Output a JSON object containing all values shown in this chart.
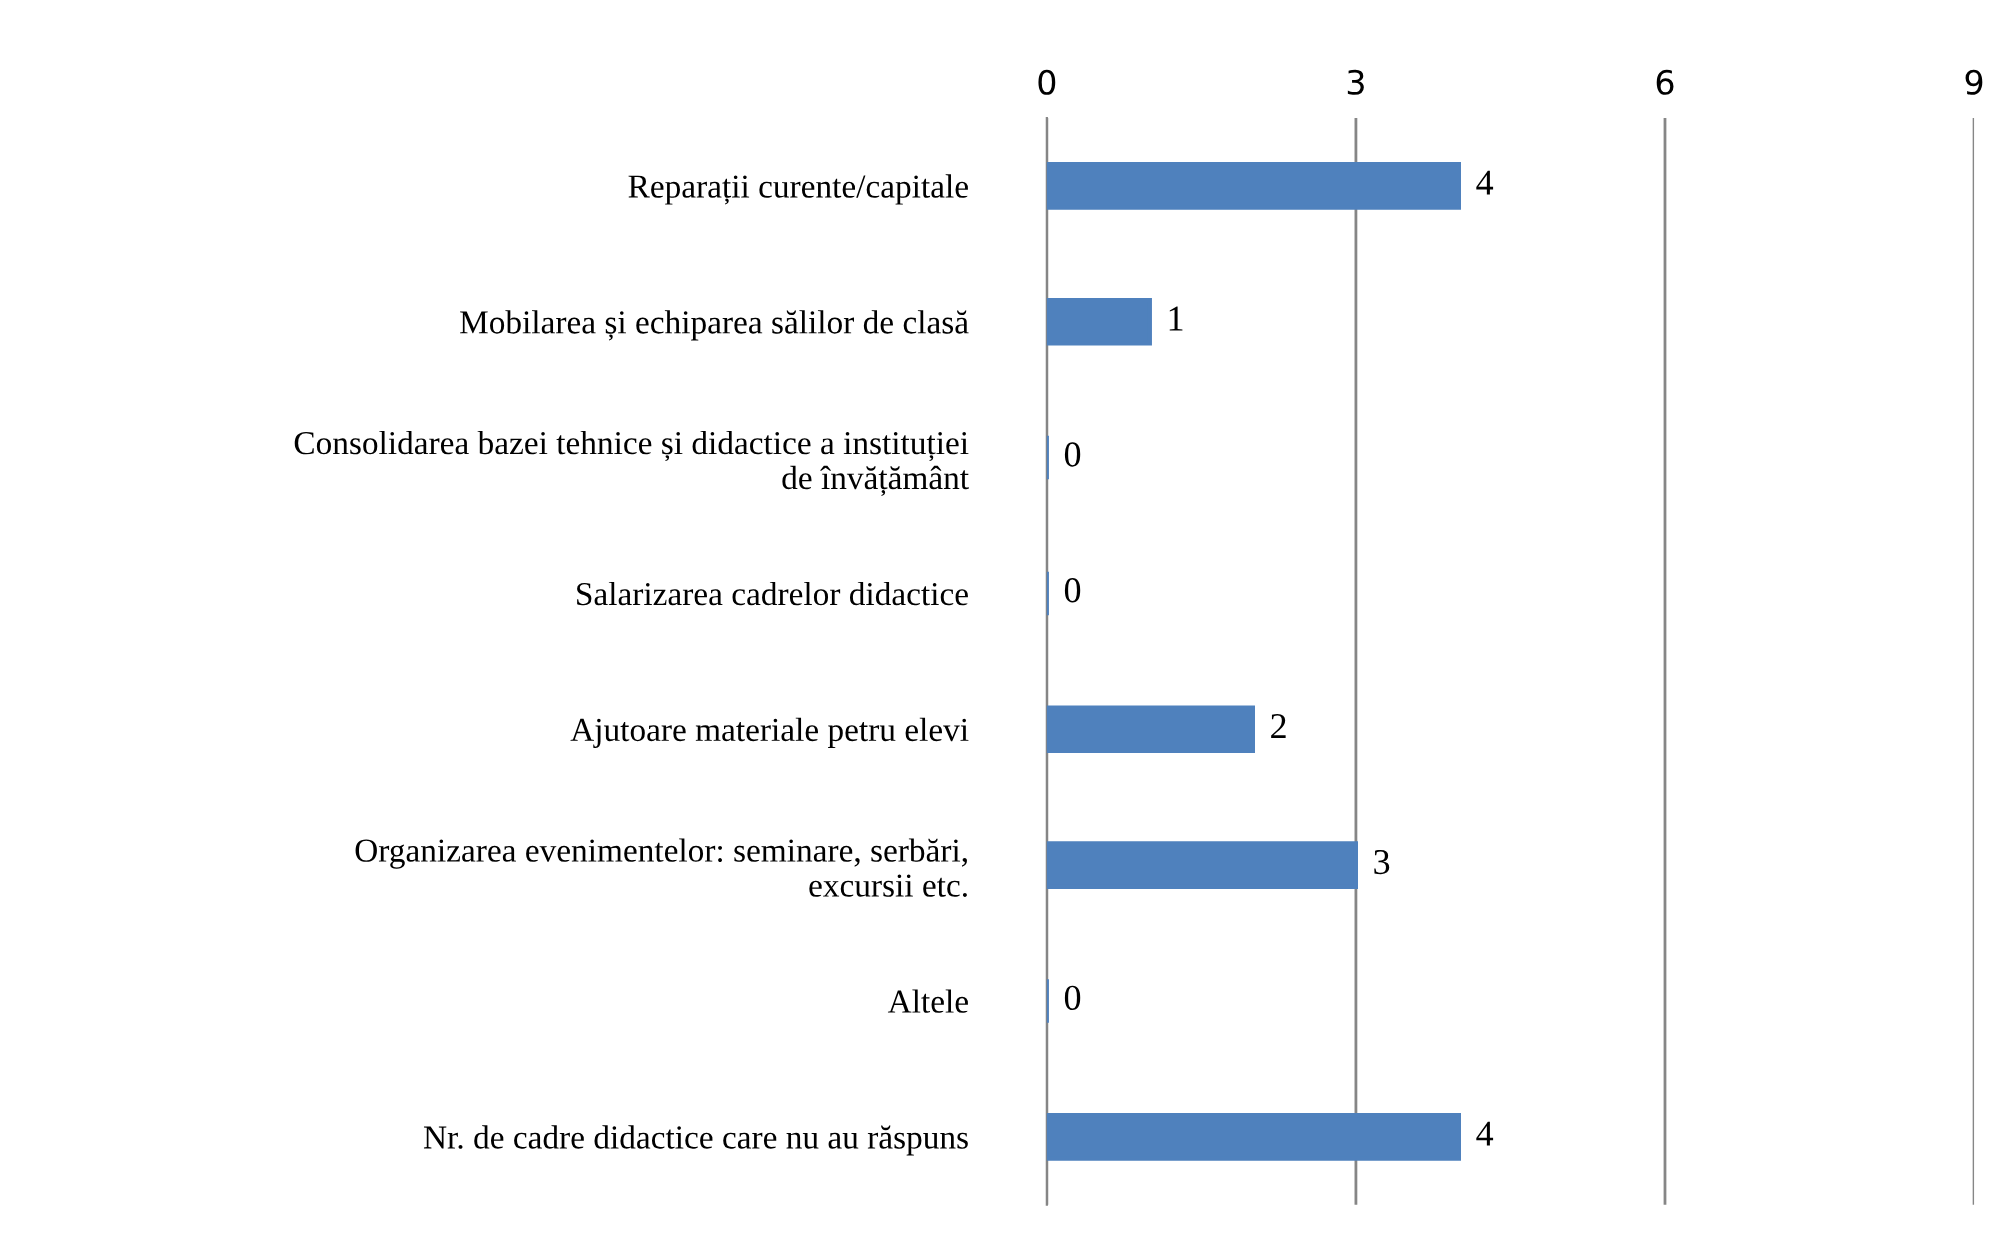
{
  "chart_data": {
    "type": "bar",
    "orientation": "horizontal",
    "categories": [
      "Reparații curente/capitale",
      "Mobilarea și echiparea sălilor de clasă",
      "Consolidarea bazei tehnice și didactice a instituției\nde învățământ",
      "Salarizarea cadrelor didactice",
      "Ajutoare materiale petru elevi",
      "Organizarea evenimentelor: seminare, serbări,\nexcursii etc.",
      "Altele",
      "Nr. de cadre didactice care nu au răspuns"
    ],
    "values": [
      4,
      1,
      0,
      0,
      2,
      3,
      0,
      4
    ],
    "color": "#4f81bd",
    "xlim": [
      0,
      9
    ],
    "xticks": [
      0,
      3,
      6,
      9
    ],
    "grid": "x",
    "data_labels": true
  }
}
